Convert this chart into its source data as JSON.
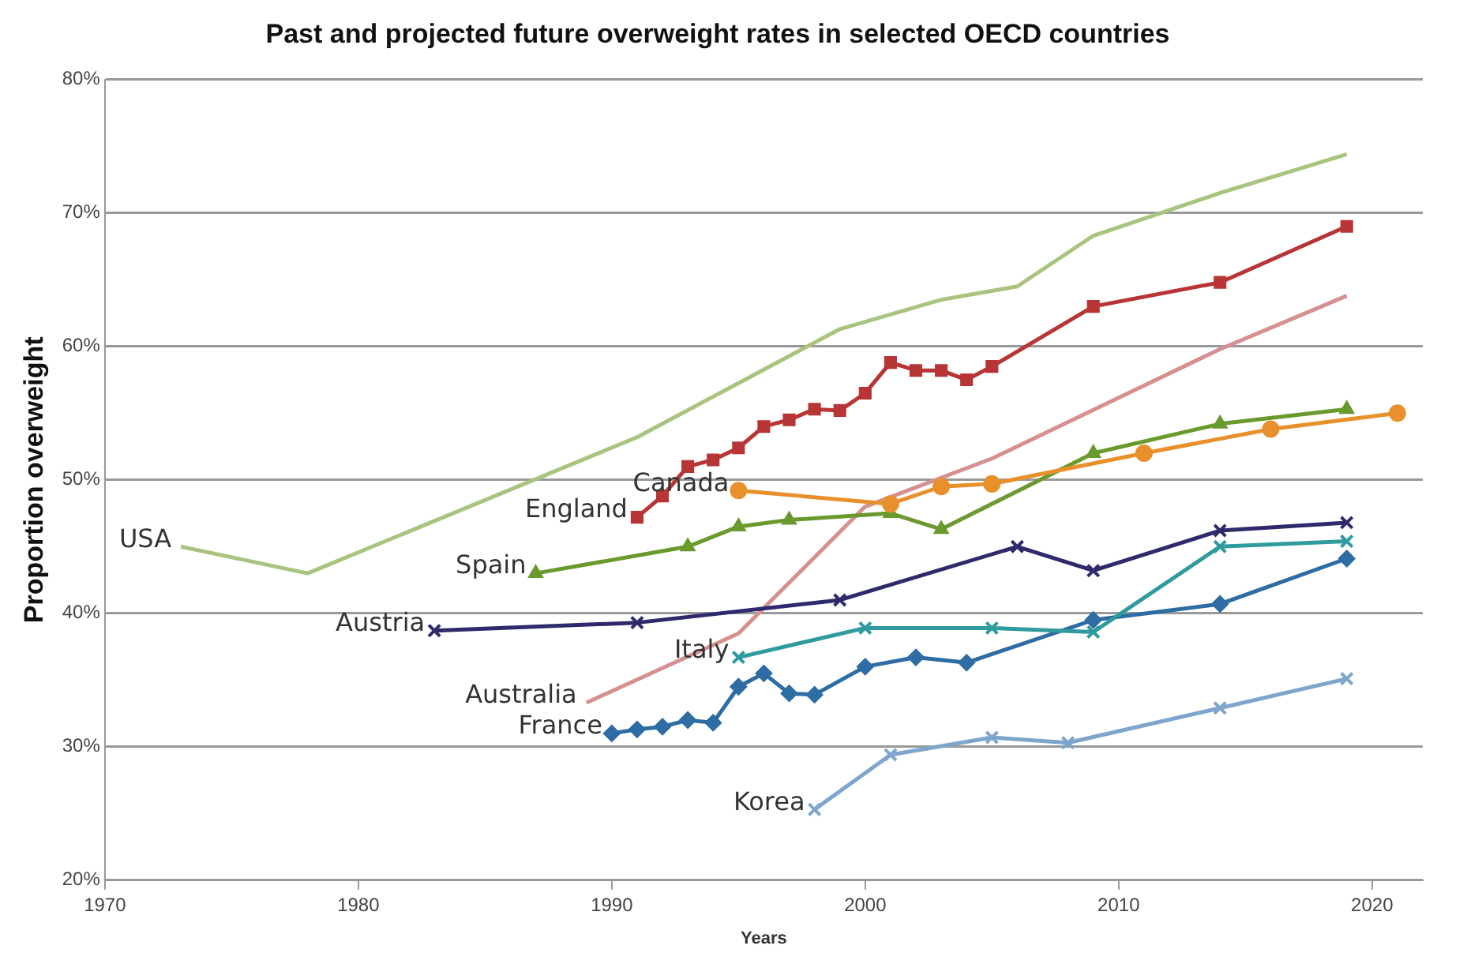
{
  "chart_data": {
    "type": "line",
    "title": "Past and projected future overweight rates in selected OECD countries",
    "xlabel": "Years",
    "ylabel": "Proportion overweight",
    "xlim": [
      1970,
      2022
    ],
    "xticks": [
      1970,
      1980,
      1990,
      2000,
      2010,
      2020
    ],
    "ylim": [
      20,
      80
    ],
    "yticks": [
      {
        "value": 20,
        "label": "20%"
      },
      {
        "value": 30,
        "label": "30%"
      },
      {
        "value": 40,
        "label": "40%"
      },
      {
        "value": 50,
        "label": "50%"
      },
      {
        "value": 60,
        "label": "60%"
      },
      {
        "value": 70,
        "label": "70%"
      },
      {
        "value": 80,
        "label": "80%"
      }
    ],
    "grid": "y",
    "legend": false,
    "line_style": "solid",
    "series": [
      {
        "name": "USA",
        "color": "#a9c47f",
        "marker": "none",
        "x": [
          1973,
          1978,
          1991,
          1999,
          2003,
          2006,
          2009,
          2014,
          2019
        ],
        "values": [
          45,
          43,
          53.2,
          61.3,
          63.5,
          64.5,
          68.3,
          71.5,
          74.4
        ]
      },
      {
        "name": "England",
        "color": "#b83535",
        "marker": "square",
        "x": [
          1991,
          1992,
          1993,
          1994,
          1995,
          1996,
          1997,
          1998,
          1999,
          2000,
          2001,
          2002,
          2003,
          2004,
          2005,
          2009,
          2014,
          2019
        ],
        "values": [
          47.2,
          48.8,
          51,
          51.5,
          52.4,
          54,
          54.5,
          55.3,
          55.2,
          56.5,
          58.8,
          58.2,
          58.2,
          57.5,
          58.5,
          63,
          64.8,
          69
        ]
      },
      {
        "name": "Canada",
        "color": "#e8912c",
        "marker": "circle",
        "x": [
          1995,
          2001,
          2003,
          2005,
          2011,
          2016,
          2021
        ],
        "values": [
          49.2,
          48.2,
          49.5,
          49.7,
          52,
          53.8,
          55
        ]
      },
      {
        "name": "Spain",
        "color": "#6a9a2e",
        "marker": "triangle",
        "x": [
          1987,
          1993,
          1995,
          1997,
          2001,
          2003,
          2009,
          2014,
          2019
        ],
        "values": [
          43,
          45,
          46.5,
          47,
          47.5,
          46.3,
          52,
          54.2,
          55.3
        ]
      },
      {
        "name": "Austria",
        "color": "#2e2a6b",
        "marker": "cross",
        "x": [
          1983,
          1991,
          1999,
          2006,
          2009,
          2014,
          2019
        ],
        "values": [
          38.7,
          39.3,
          41,
          45,
          43.2,
          46.2,
          46.8
        ]
      },
      {
        "name": "Australia",
        "color": "#d4918f",
        "marker": "none",
        "x": [
          1989,
          1995,
          2000,
          2005,
          2014,
          2019
        ],
        "values": [
          33.3,
          38.5,
          48,
          51.6,
          59.8,
          63.8
        ]
      },
      {
        "name": "Italy",
        "color": "#2f9b9f",
        "marker": "cross",
        "x": [
          1995,
          2000,
          2005,
          2009,
          2014,
          2019
        ],
        "values": [
          36.7,
          38.9,
          38.9,
          38.6,
          45,
          45.4
        ]
      },
      {
        "name": "France",
        "color": "#2e6ca4",
        "marker": "diamond",
        "x": [
          1990,
          1991,
          1992,
          1993,
          1994,
          1995,
          1996,
          1997,
          1998,
          2000,
          2002,
          2004,
          2009,
          2014,
          2019
        ],
        "values": [
          31,
          31.3,
          31.5,
          32,
          31.8,
          34.5,
          35.5,
          34,
          33.9,
          36,
          36.7,
          36.3,
          39.5,
          40.7,
          44.1
        ]
      },
      {
        "name": "Korea",
        "color": "#7ea6cc",
        "marker": "cross",
        "x": [
          1998,
          2001,
          2005,
          2008,
          2014,
          2019
        ],
        "values": [
          25.3,
          29.4,
          30.7,
          30.3,
          32.9,
          35.1
        ]
      }
    ]
  }
}
